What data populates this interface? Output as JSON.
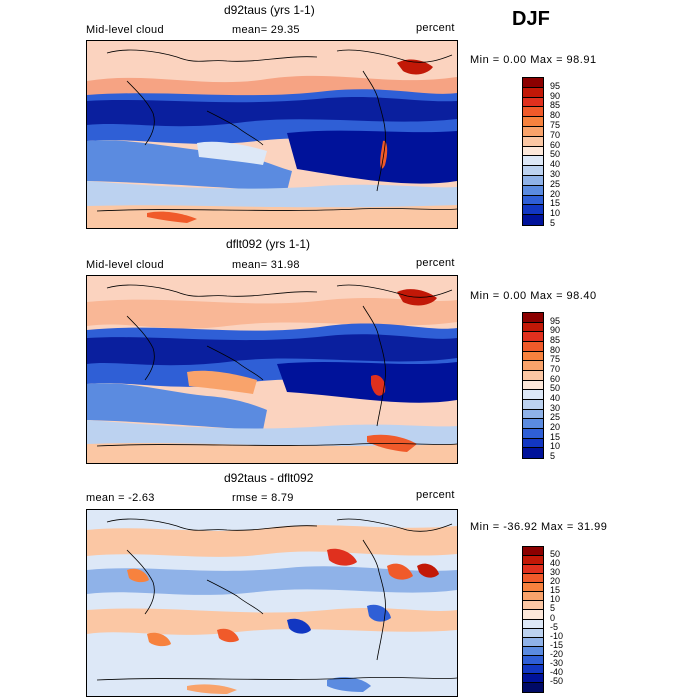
{
  "season": "DJF",
  "panels": [
    {
      "title": "d92taus (yrs 1-1)",
      "left_label": "Mid-level cloud",
      "center_label": "mean=  29.35",
      "right_label": "percent",
      "stats": "Min =   0.00 Max =  98.91",
      "colorbar": [
        "95",
        "90",
        "85",
        "80",
        "75",
        "70",
        "60",
        "50",
        "40",
        "30",
        "25",
        "20",
        "15",
        "10",
        "5"
      ],
      "colors": [
        "#8b0000",
        "#c21807",
        "#e0301e",
        "#f05a2a",
        "#f7823e",
        "#f9a36b",
        "#fbc7a4",
        "#fde8da",
        "#dde8f7",
        "#bcd2f0",
        "#8fb2e8",
        "#5b8be0",
        "#2f5fd6",
        "#1237c2",
        "#00129a"
      ]
    },
    {
      "title": "dflt092 (yrs 1-1)",
      "left_label": "Mid-level cloud",
      "center_label": "mean=  31.98",
      "right_label": "percent",
      "stats": "Min =   0.00 Max =  98.40",
      "colorbar": [
        "95",
        "90",
        "85",
        "80",
        "75",
        "70",
        "60",
        "50",
        "40",
        "30",
        "25",
        "20",
        "15",
        "10",
        "5"
      ],
      "colors": [
        "#8b0000",
        "#c21807",
        "#e0301e",
        "#f05a2a",
        "#f7823e",
        "#f9a36b",
        "#fbc7a4",
        "#fde8da",
        "#dde8f7",
        "#bcd2f0",
        "#8fb2e8",
        "#5b8be0",
        "#2f5fd6",
        "#1237c2",
        "#00129a"
      ]
    },
    {
      "title": "d92taus - dflt092",
      "left_label": "mean =  -2.63",
      "center_label": "rmse =   8.79",
      "right_label": "percent",
      "stats": "Min = -36.92 Max =  31.99",
      "colorbar": [
        "50",
        "40",
        "30",
        "20",
        "15",
        "10",
        "5",
        "0",
        "-5",
        "-10",
        "-15",
        "-20",
        "-30",
        "-40",
        "-50"
      ],
      "colors": [
        "#8b0000",
        "#c21807",
        "#e0301e",
        "#f05a2a",
        "#f7823e",
        "#f9a36b",
        "#fbc7a4",
        "#fde8da",
        "#dde8f7",
        "#bcd2f0",
        "#8fb2e8",
        "#5b8be0",
        "#2f5fd6",
        "#1237c2",
        "#00129a",
        "#000a66"
      ]
    }
  ]
}
